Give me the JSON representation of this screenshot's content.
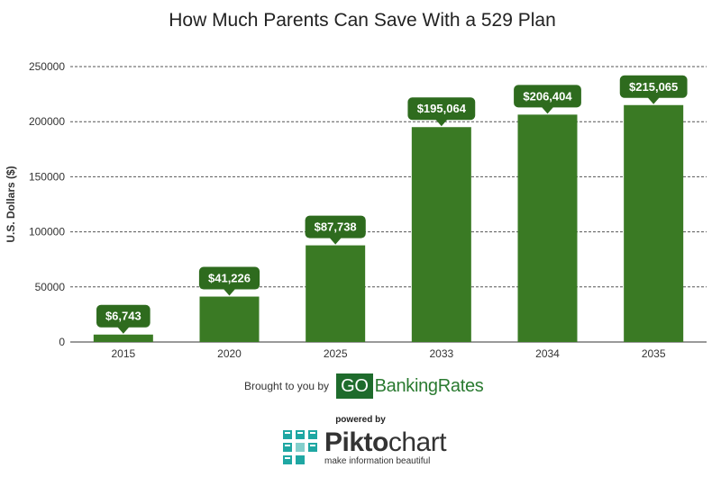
{
  "chart_data": {
    "type": "bar",
    "title": "How Much Parents Can Save With a 529 Plan",
    "ylabel": "U.S. Dollars ($)",
    "xlabel": "",
    "categories": [
      "2015",
      "2020",
      "2025",
      "2033",
      "2034",
      "2035"
    ],
    "values": [
      6743,
      41226,
      87738,
      195064,
      206404,
      215065
    ],
    "data_labels": [
      "$6,743",
      "$41,226",
      "$87,738",
      "$195,064",
      "$206,404",
      "$215,065"
    ],
    "ylim": [
      0,
      250000
    ],
    "yticks": [
      0,
      50000,
      100000,
      150000,
      200000,
      250000
    ],
    "ytick_labels": [
      "0",
      "50000",
      "100000",
      "150000",
      "200000",
      "250000"
    ],
    "grid": true,
    "bar_color": "#3a7a24",
    "label_color": "#2e6b1e"
  },
  "credit": {
    "text": "Brought to you by",
    "brand_box": "GO",
    "brand_rest": "BankingRates"
  },
  "piktochart": {
    "powered": "powered by",
    "name_bold": "Pikto",
    "name_light": "chart",
    "tagline": "make information beautiful"
  }
}
